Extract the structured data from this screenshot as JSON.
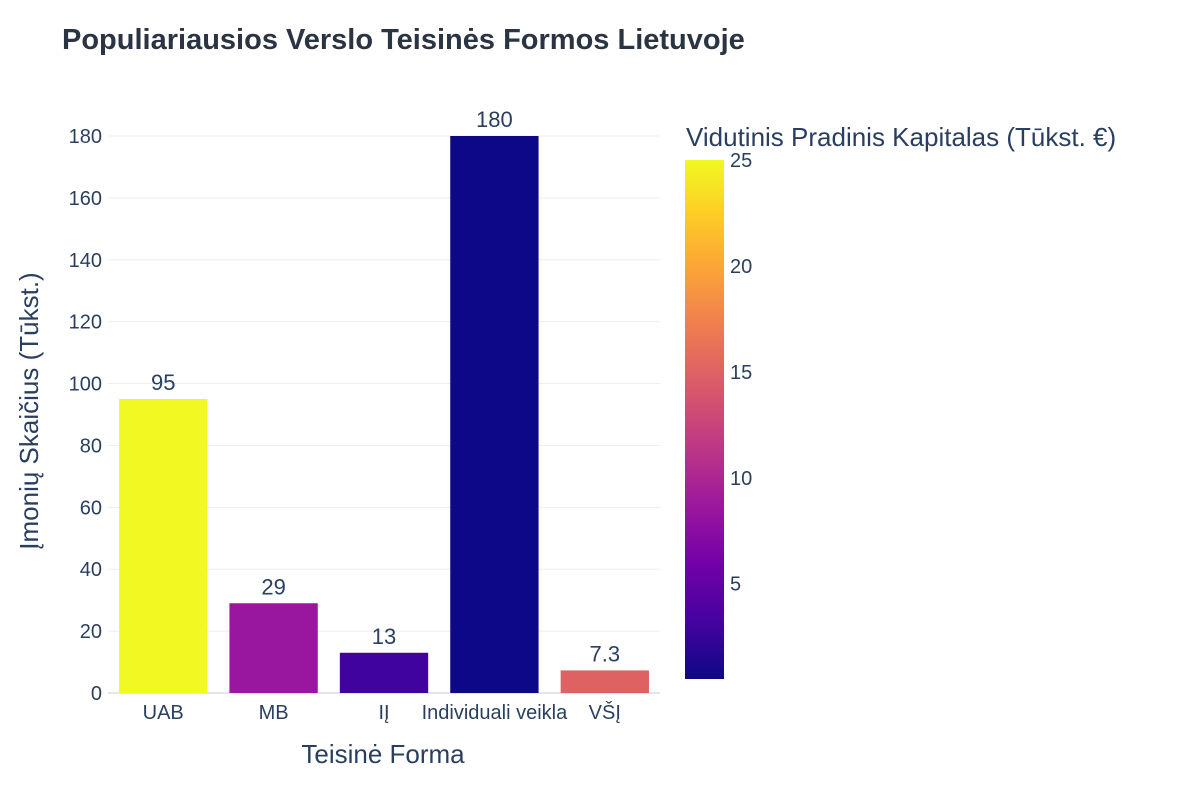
{
  "chart_data": {
    "type": "bar",
    "title": "Populiariausios Verslo Teisinės Formos Lietuvoje",
    "xlabel": "Teisinė Forma",
    "ylabel": "Įmonių Skaičius (Tūkst.)",
    "categories": [
      "UAB",
      "MB",
      "IĮ",
      "Individuali veikla",
      "VŠĮ"
    ],
    "values": [
      95,
      29,
      13,
      180,
      7.3
    ],
    "value_labels": [
      "95",
      "29",
      "13",
      "180",
      "7.3"
    ],
    "color_values": [
      25,
      8.5,
      3,
      0.5,
      15
    ],
    "ylim": [
      0,
      180
    ],
    "yticks": [
      0,
      20,
      40,
      60,
      80,
      100,
      120,
      140,
      160,
      180
    ],
    "grid": true,
    "colorbar": {
      "title": "Vidutinis Pradinis Kapitalas (Tūkst. €)",
      "range": [
        0.5,
        25
      ],
      "ticks": [
        5,
        10,
        15,
        20,
        25
      ],
      "colorscale": [
        "#0d0887",
        "#46039f",
        "#7201a8",
        "#9c179e",
        "#bd3786",
        "#d8576b",
        "#ed7953",
        "#fb9f3a",
        "#fdca26",
        "#f0f921"
      ]
    }
  }
}
